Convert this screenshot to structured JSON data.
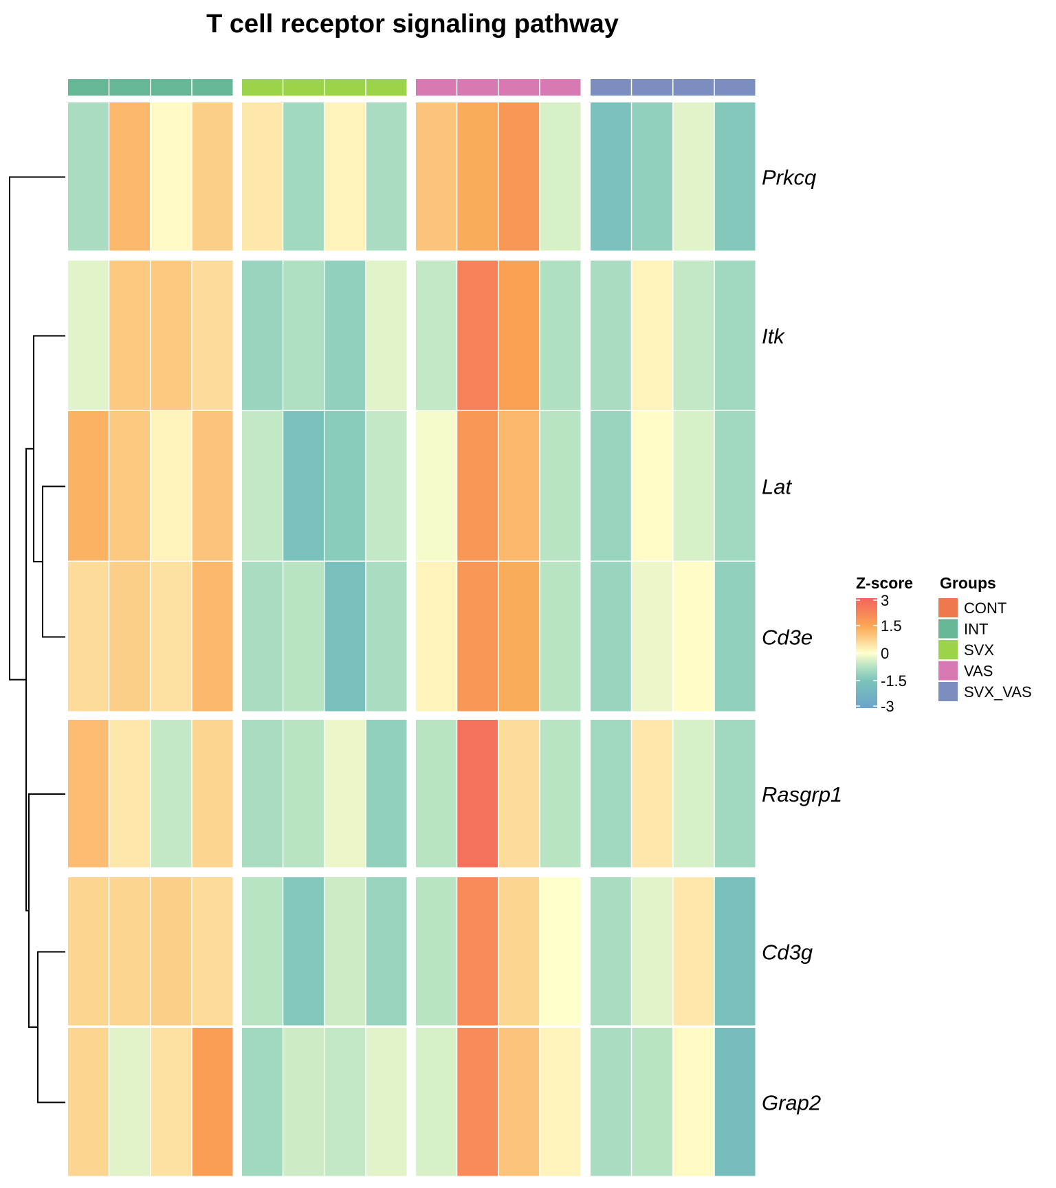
{
  "chart_data": {
    "type": "heatmap",
    "title": "T cell receptor signaling pathway",
    "rows": [
      "Prkcq",
      "Itk",
      "Lat",
      "Cd3e",
      "Rasgrp1",
      "Cd3g",
      "Grap2"
    ],
    "row_splits": [
      [
        "Prkcq"
      ],
      [
        "Itk",
        "Lat",
        "Cd3e"
      ],
      [
        "Rasgrp1"
      ],
      [
        "Cd3g",
        "Grap2"
      ]
    ],
    "column_groups": [
      {
        "name": "INT",
        "color": "#66B795",
        "n": 4
      },
      {
        "name": "SVX",
        "color": "#9BD449",
        "n": 4
      },
      {
        "name": "VAS",
        "color": "#D879B3",
        "n": 4
      },
      {
        "name": "SVX_VAS",
        "color": "#7C8DBF",
        "n": 4
      }
    ],
    "values": {
      "Prkcq": [
        -0.9,
        1.2,
        0.1,
        0.8,
        0.4,
        -1.0,
        0.2,
        -0.9,
        1.0,
        1.4,
        1.8,
        -0.4,
        -1.6,
        -1.2,
        -0.3,
        -1.4
      ],
      "Itk": [
        -0.3,
        0.9,
        0.9,
        0.6,
        -1.1,
        -0.8,
        -1.2,
        -0.3,
        -0.6,
        2.3,
        1.6,
        -0.8,
        -0.9,
        0.2,
        -0.6,
        -1.0
      ],
      "Lat": [
        1.3,
        0.9,
        0.2,
        1.0,
        -0.6,
        -1.6,
        -1.3,
        -0.6,
        -0.1,
        1.8,
        1.2,
        -0.7,
        -1.1,
        0.05,
        -0.4,
        -1.0
      ],
      "Cd3e": [
        0.6,
        0.8,
        0.5,
        1.2,
        -0.9,
        -0.7,
        -1.7,
        -0.9,
        0.2,
        1.8,
        1.4,
        -0.7,
        -1.1,
        -0.2,
        0.05,
        -1.2
      ],
      "Rasgrp1": [
        1.1,
        0.4,
        -0.6,
        0.7,
        -0.9,
        -0.7,
        -0.2,
        -1.2,
        -0.7,
        2.7,
        0.6,
        -0.7,
        -1.0,
        0.4,
        -0.4,
        -1.0
      ],
      "Cd3g": [
        0.7,
        0.7,
        0.8,
        0.6,
        -0.7,
        -1.4,
        -0.5,
        -1.1,
        -0.7,
        2.1,
        0.7,
        0.0,
        -0.9,
        -0.3,
        0.4,
        -1.7
      ],
      "Grap2": [
        0.7,
        -0.3,
        0.5,
        1.7,
        -1.0,
        -0.5,
        -0.6,
        -0.3,
        -0.4,
        2.1,
        1.0,
        0.2,
        -0.9,
        -0.7,
        0.1,
        -1.8
      ]
    },
    "dendrogram": "((Prkcq),((Itk,(Lat,Cd3e)),(Rasgrp1,(Cd3g,Grap2))))",
    "color_scale": {
      "title": "Z-score",
      "range": [
        -3,
        3
      ],
      "ticks": [
        3,
        1.5,
        0,
        -1.5,
        -3
      ],
      "stops": [
        {
          "value": -3,
          "color": "#6BA3CB"
        },
        {
          "value": -1.5,
          "color": "#7BC4BA"
        },
        {
          "value": -0.75,
          "color": "#B4E2C3"
        },
        {
          "value": 0,
          "color": "#FFFFCC"
        },
        {
          "value": 0.75,
          "color": "#FCD28D"
        },
        {
          "value": 1.5,
          "color": "#FBA653"
        },
        {
          "value": 2.25,
          "color": "#F7845A"
        },
        {
          "value": 3,
          "color": "#F4645E"
        }
      ]
    },
    "legend_groups": {
      "title": "Groups",
      "items": [
        {
          "label": "CONT",
          "color": "#EF794F"
        },
        {
          "label": "INT",
          "color": "#66B795"
        },
        {
          "label": "SVX",
          "color": "#9BD449"
        },
        {
          "label": "VAS",
          "color": "#D879B3"
        },
        {
          "label": "SVX_VAS",
          "color": "#7C8DBF"
        }
      ]
    },
    "legend_placement": "right"
  }
}
